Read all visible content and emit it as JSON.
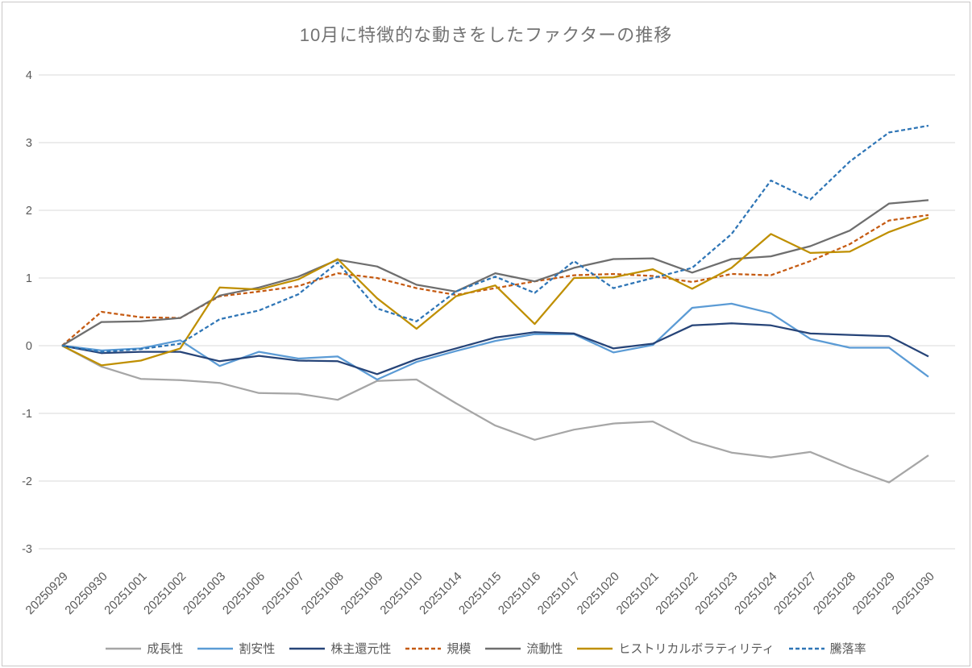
{
  "chart_data": {
    "type": "line",
    "title": "10月に特徴的な動きをしたファクターの推移",
    "xlabel": "",
    "ylabel": "",
    "x_labels": [
      "20250929",
      "20250930",
      "20251001",
      "20251002",
      "20251003",
      "20251006",
      "20251007",
      "20251008",
      "20251009",
      "20251010",
      "20251014",
      "20251015",
      "20251016",
      "20251017",
      "20251020",
      "20251021",
      "20251022",
      "20251023",
      "20251024",
      "20251027",
      "20251028",
      "20251029",
      "20251030"
    ],
    "y_ticks": [
      4,
      3,
      2,
      1,
      0,
      -1,
      -2,
      -3
    ],
    "ylim": [
      -3,
      4
    ],
    "grid": "horizontal",
    "legend_position": "bottom",
    "gridline_color": "#d9d9d9",
    "tick_label_color": "#595959",
    "title_color": "#737373",
    "series": [
      {
        "name": "成長性",
        "color": "#A6A6A6",
        "style": "solid",
        "values": [
          0,
          -0.31,
          -0.49,
          -0.51,
          -0.55,
          -0.7,
          -0.71,
          -0.8,
          -0.52,
          -0.5,
          -0.85,
          -1.18,
          -1.39,
          -1.24,
          -1.15,
          -1.12,
          -1.41,
          -1.58,
          -1.65,
          -1.57,
          -1.81,
          -2.02,
          -1.62
        ]
      },
      {
        "name": "割安性",
        "color": "#5B9BD5",
        "style": "solid",
        "values": [
          0,
          -0.07,
          -0.04,
          0.08,
          -0.3,
          -0.09,
          -0.19,
          -0.16,
          -0.5,
          -0.24,
          -0.08,
          0.07,
          0.17,
          0.17,
          -0.1,
          0.01,
          0.56,
          0.62,
          0.48,
          0.1,
          -0.03,
          -0.03,
          -0.46
        ]
      },
      {
        "name": "株主還元性",
        "color": "#264478",
        "style": "solid",
        "values": [
          0,
          -0.11,
          -0.09,
          -0.09,
          -0.23,
          -0.15,
          -0.22,
          -0.23,
          -0.42,
          -0.2,
          -0.04,
          0.12,
          0.2,
          0.18,
          -0.04,
          0.03,
          0.3,
          0.33,
          0.3,
          0.18,
          0.16,
          0.14,
          -0.16
        ]
      },
      {
        "name": "規模",
        "color": "#C55A11",
        "style": "dashed",
        "values": [
          0,
          0.5,
          0.42,
          0.41,
          0.73,
          0.8,
          0.88,
          1.07,
          1.0,
          0.85,
          0.75,
          0.85,
          0.95,
          1.04,
          1.06,
          1.03,
          0.94,
          1.06,
          1.04,
          1.25,
          1.5,
          1.85,
          1.93
        ]
      },
      {
        "name": "流動性",
        "color": "#6E6E6E",
        "style": "solid",
        "values": [
          0,
          0.35,
          0.36,
          0.41,
          0.74,
          0.86,
          1.02,
          1.27,
          1.17,
          0.9,
          0.8,
          1.07,
          0.95,
          1.15,
          1.28,
          1.29,
          1.08,
          1.28,
          1.32,
          1.47,
          1.7,
          2.1,
          2.15
        ]
      },
      {
        "name": "ヒストリカルボラティリティ",
        "color": "#BF8F00",
        "style": "solid",
        "values": [
          0,
          -0.29,
          -0.22,
          -0.04,
          0.86,
          0.83,
          0.98,
          1.28,
          0.7,
          0.25,
          0.73,
          0.89,
          0.32,
          1.0,
          1.01,
          1.13,
          0.84,
          1.15,
          1.65,
          1.37,
          1.39,
          1.68,
          1.89
        ]
      },
      {
        "name": "騰落率",
        "color": "#2E75B6",
        "style": "dashed",
        "values": [
          0,
          -0.09,
          -0.05,
          0.03,
          0.39,
          0.52,
          0.76,
          1.23,
          0.55,
          0.36,
          0.8,
          1.02,
          0.78,
          1.25,
          0.85,
          1.0,
          1.15,
          1.65,
          2.44,
          2.16,
          2.72,
          3.15,
          3.25
        ]
      }
    ]
  }
}
